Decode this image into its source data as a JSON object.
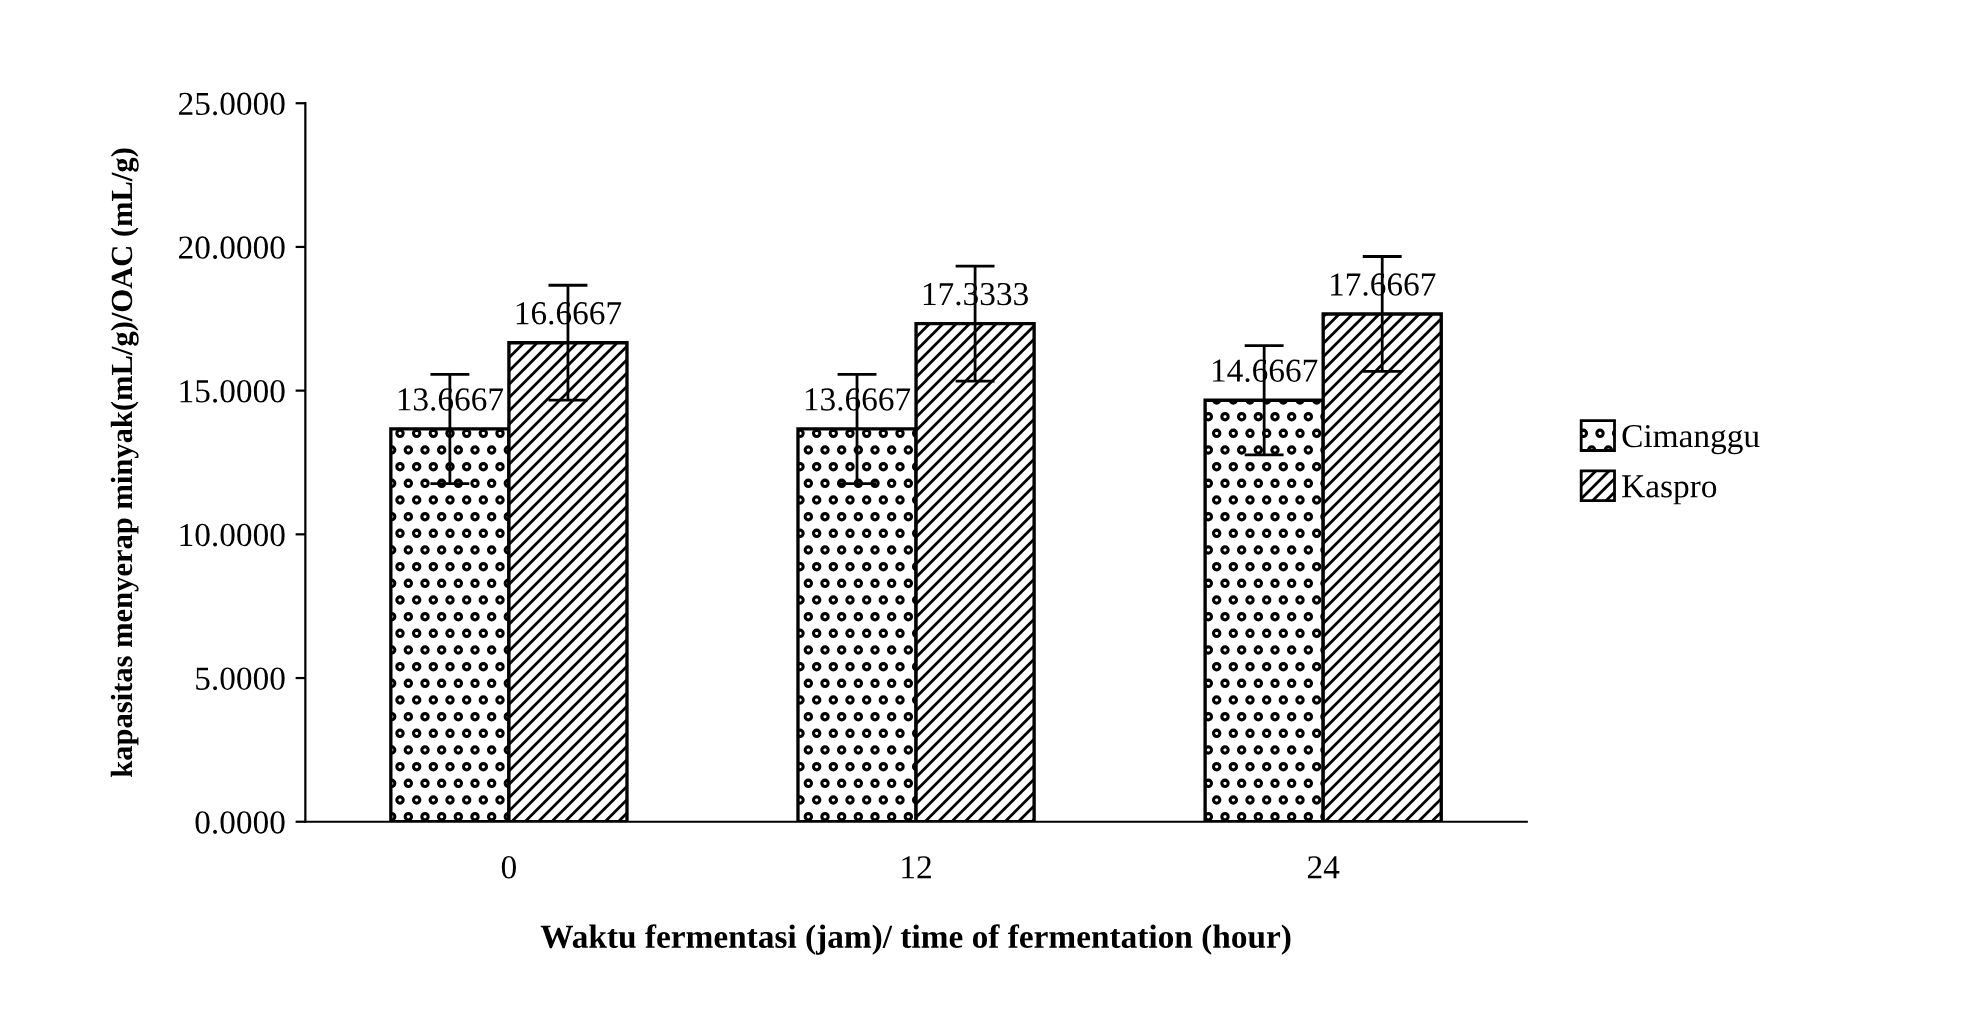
{
  "chart_data": {
    "type": "bar",
    "xlabel": "Waktu fermentasi (jam)/ time of fermentation (hour)",
    "ylabel": "kapasitas menyerap minyak(mL/g)/OAC (mL/g)",
    "categories": [
      "0",
      "12",
      "24"
    ],
    "series": [
      {
        "name": "Cimanggu",
        "color": "#000000",
        "values": [
          13.6667,
          13.6667,
          14.6667
        ],
        "errors": [
          1.9,
          1.9,
          1.9
        ]
      },
      {
        "name": "Kaspro",
        "color": "#000000",
        "values": [
          16.6667,
          17.3333,
          17.6667
        ],
        "errors": [
          2.0,
          2.0,
          2.0
        ]
      }
    ],
    "ylim": [
      0,
      25
    ],
    "yticks": [
      {
        "value": 0,
        "label": "0.0000"
      },
      {
        "value": 5,
        "label": "5.0000"
      },
      {
        "value": 10,
        "label": "10.0000"
      },
      {
        "value": 15,
        "label": "15.0000"
      },
      {
        "value": 20,
        "label": "20.0000"
      },
      {
        "value": 25,
        "label": "25.0000"
      }
    ],
    "data_labels": true,
    "legend": "right",
    "grid": false
  }
}
